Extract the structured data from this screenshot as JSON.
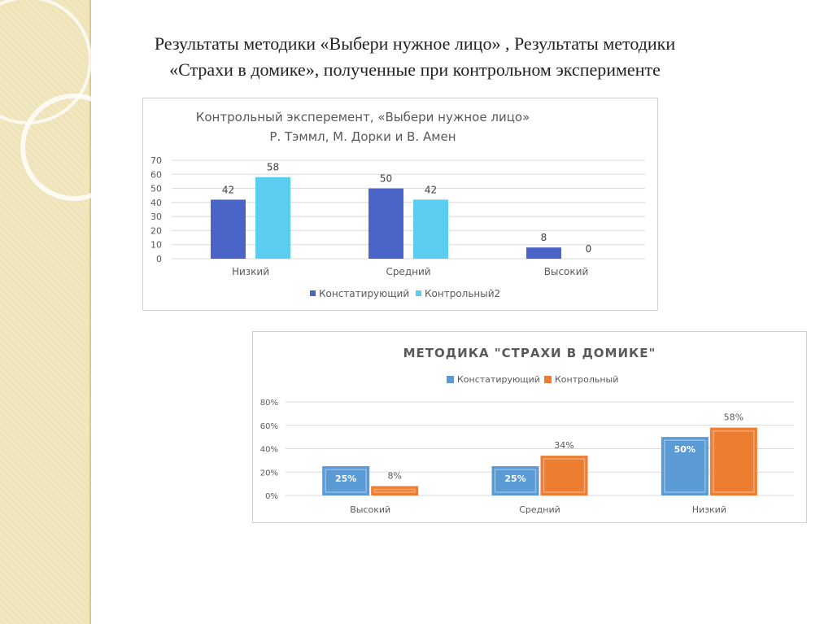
{
  "page": {
    "title_line1": "Результаты методики «Выбери нужное лицо» , Результаты методики",
    "title_line2": "«Страхи в домике», полученные при контрольном эксперименте"
  },
  "chart_data": [
    {
      "type": "bar",
      "title": "Контрольный эксперемент, «Выбери нужное лицо»",
      "subtitle": "Р. Тэммл, М. Дорки и В. Амен",
      "categories": [
        "Низкий",
        "Средний",
        "Высокий"
      ],
      "series": [
        {
          "name": "Констатирующий",
          "values": [
            42,
            50,
            8
          ],
          "labels": [
            "42",
            "50",
            "8"
          ],
          "color": "#4b64c8"
        },
        {
          "name": "Контрольный2",
          "values": [
            58,
            42,
            0
          ],
          "labels": [
            "58",
            "42",
            "0"
          ],
          "color": "#5bcdf0"
        }
      ],
      "ylim": [
        0,
        70
      ],
      "yticks": [
        0,
        10,
        20,
        30,
        40,
        50,
        60,
        70
      ],
      "ytick_labels": [
        "0",
        "10",
        "20",
        "30",
        "40",
        "50",
        "60",
        "70"
      ],
      "grid": true,
      "legend": "bottom",
      "xlabel": "",
      "ylabel": ""
    },
    {
      "type": "bar",
      "title": "МЕТОДИКА \"СТРАХИ В ДОМИКЕ\"",
      "categories": [
        "Высокий",
        "Средний",
        "Низкий"
      ],
      "series": [
        {
          "name": "Констатирующий",
          "values": [
            25,
            25,
            50
          ],
          "labels": [
            "25%",
            "25%",
            "50%"
          ],
          "color": "#5b9bd5"
        },
        {
          "name": "Контрольный",
          "values": [
            8,
            34,
            58
          ],
          "labels": [
            "8%",
            "34%",
            "58%"
          ],
          "color": "#ed7d31"
        }
      ],
      "ylim": [
        0,
        80
      ],
      "yticks": [
        0,
        20,
        40,
        60,
        80
      ],
      "ytick_labels": [
        "0%",
        "20%",
        "40%",
        "60%",
        "80%"
      ],
      "grid": true,
      "legend": "top",
      "xlabel": "",
      "ylabel": ""
    }
  ]
}
